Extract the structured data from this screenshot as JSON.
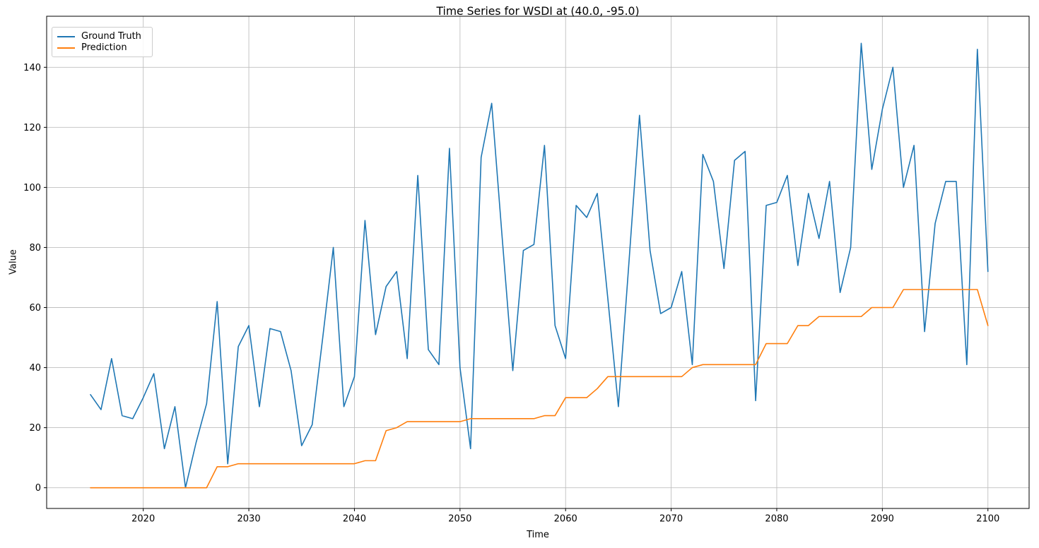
{
  "figure": {
    "title": "Time Series for WSDI at (40.0, -95.0)",
    "xlabel": "Time",
    "ylabel": "Value",
    "legend": [
      {
        "label": "Ground Truth",
        "color": "#1f77b4"
      },
      {
        "label": "Prediction",
        "color": "#ff7f0e"
      }
    ]
  },
  "chart_data": {
    "type": "line",
    "title": "Time Series for WSDI at (40.0, -95.0)",
    "xlabel": "Time",
    "ylabel": "Value",
    "grid": true,
    "legend_position": "upper left",
    "xlim": [
      2010.85,
      2103.9
    ],
    "ylim": [
      -6.9,
      157.0
    ],
    "xticks": [
      2020,
      2030,
      2040,
      2050,
      2060,
      2070,
      2080,
      2090,
      2100
    ],
    "yticks": [
      0,
      20,
      40,
      60,
      80,
      100,
      120,
      140
    ],
    "colors": {
      "grid": "#bfbfbf",
      "axes": "#000000",
      "background": "#ffffff"
    },
    "x": [
      2015,
      2016,
      2017,
      2018,
      2019,
      2020,
      2021,
      2022,
      2023,
      2024,
      2025,
      2026,
      2027,
      2028,
      2029,
      2030,
      2031,
      2032,
      2033,
      2034,
      2035,
      2036,
      2037,
      2038,
      2039,
      2040,
      2041,
      2042,
      2043,
      2044,
      2045,
      2046,
      2047,
      2048,
      2049,
      2050,
      2051,
      2052,
      2053,
      2054,
      2055,
      2056,
      2057,
      2058,
      2059,
      2060,
      2061,
      2062,
      2063,
      2064,
      2065,
      2066,
      2067,
      2068,
      2069,
      2070,
      2071,
      2072,
      2073,
      2074,
      2075,
      2076,
      2077,
      2078,
      2079,
      2080,
      2081,
      2082,
      2083,
      2084,
      2085,
      2086,
      2087,
      2088,
      2089,
      2090,
      2091,
      2092,
      2093,
      2094,
      2095,
      2096,
      2097,
      2098,
      2099,
      2100
    ],
    "series": [
      {
        "name": "Ground Truth",
        "color": "#1f77b4",
        "values": [
          31,
          26,
          43,
          24,
          23,
          30,
          38,
          13,
          27,
          0,
          15,
          28,
          62,
          8,
          47,
          54,
          27,
          53,
          52,
          39,
          14,
          21,
          50,
          80,
          27,
          37,
          89,
          51,
          67,
          72,
          43,
          104,
          46,
          41,
          113,
          40,
          13,
          110,
          128,
          83,
          39,
          79,
          81,
          114,
          54,
          43,
          94,
          90,
          98,
          63,
          27,
          75,
          124,
          79,
          58,
          60,
          72,
          41,
          111,
          102,
          73,
          109,
          112,
          29,
          94,
          95,
          104,
          74,
          98,
          83,
          102,
          65,
          80,
          148,
          106,
          126,
          140,
          100,
          114,
          52,
          88,
          102,
          102,
          41,
          146,
          72
        ]
      },
      {
        "name": "Prediction",
        "color": "#ff7f0e",
        "values": [
          0,
          0,
          0,
          0,
          0,
          0,
          0,
          0,
          0,
          0,
          0,
          0,
          7,
          7,
          8,
          8,
          8,
          8,
          8,
          8,
          8,
          8,
          8,
          8,
          8,
          8,
          9,
          9,
          19,
          20,
          22,
          22,
          22,
          22,
          22,
          22,
          23,
          23,
          23,
          23,
          23,
          23,
          23,
          24,
          24,
          30,
          30,
          30,
          33,
          37,
          37,
          37,
          37,
          37,
          37,
          37,
          37,
          40,
          41,
          41,
          41,
          41,
          41,
          41,
          48,
          48,
          48,
          54,
          54,
          57,
          57,
          57,
          57,
          57,
          60,
          60,
          60,
          66,
          66,
          66,
          66,
          66,
          66,
          66,
          66,
          54
        ]
      }
    ]
  }
}
